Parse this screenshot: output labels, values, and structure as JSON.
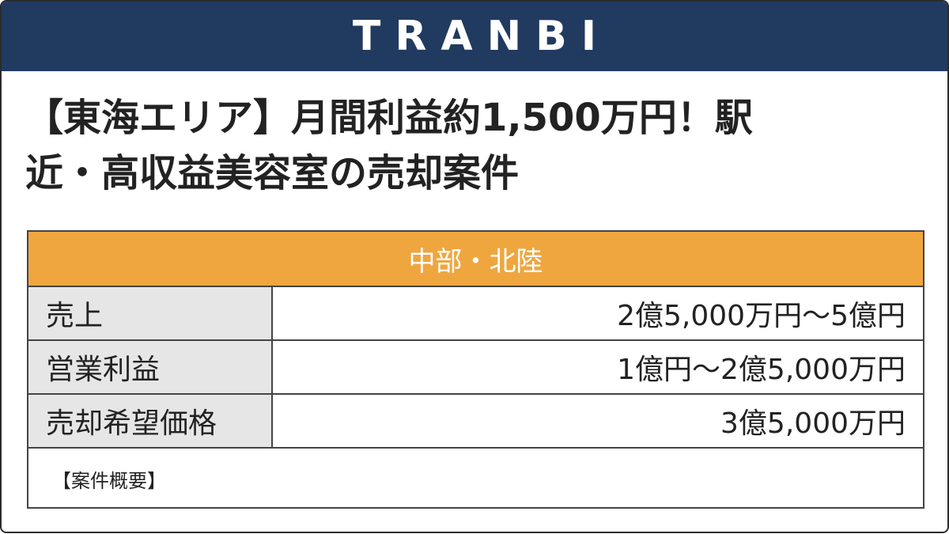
{
  "header": {
    "brand": "TRANBI",
    "bg_color": "#213a60"
  },
  "headline": {
    "line1": "【東海エリア】月間利益約1,500万円！駅",
    "line2": "近・高収益美容室の売却案件"
  },
  "table": {
    "region": "中部・北陸",
    "region_color": "#efa63f",
    "rows": [
      {
        "label": "売上",
        "value": "2億5,000万円〜5億円"
      },
      {
        "label": "営業利益",
        "value": "1億円〜2億5,000万円"
      },
      {
        "label": "売却希望価格",
        "value": "3億5,000万円"
      }
    ],
    "overview_label": "【案件概要】"
  }
}
